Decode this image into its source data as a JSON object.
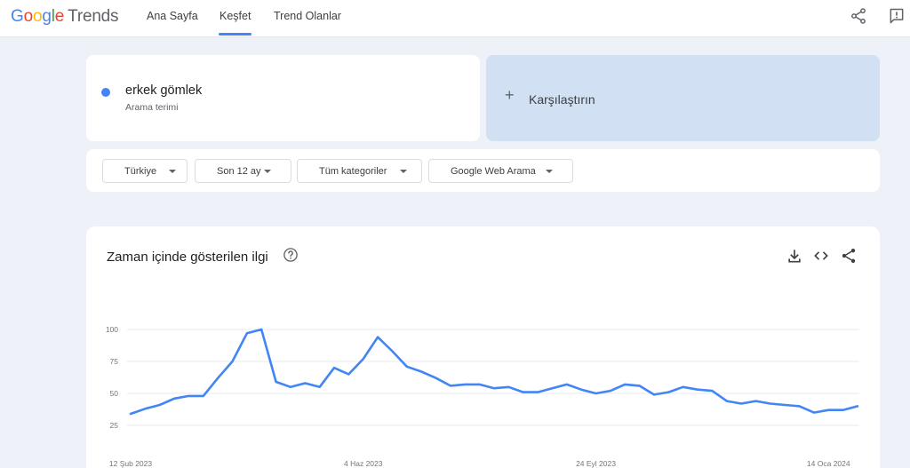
{
  "header": {
    "logo_google": "Google",
    "logo_trends": "Trends",
    "nav": [
      {
        "label": "Ana Sayfa"
      },
      {
        "label": "Keşfet"
      },
      {
        "label": "Trend Olanlar"
      }
    ],
    "icons": [
      "share-icon",
      "feedback-icon"
    ]
  },
  "search": {
    "term": "erkek gömlek",
    "term_type": "Arama terimi",
    "term_color": "#4285f4",
    "compare_plus": "+",
    "compare_label": "Karşılaştırın"
  },
  "filters": [
    {
      "label": "Türkiye"
    },
    {
      "label": "Son 12 ay"
    },
    {
      "label": "Tüm kategoriler"
    },
    {
      "label": "Google Web Arama"
    }
  ],
  "chart_section": {
    "title": "Zaman içinde gösterilen ilgi",
    "icons": [
      "help-icon",
      "download-icon",
      "embed-icon",
      "share-icon"
    ]
  },
  "chart_data": {
    "type": "line",
    "title": "",
    "xlabel": "",
    "ylabel": "",
    "ylim": [
      0,
      100
    ],
    "y_ticks": [
      25,
      50,
      75,
      100
    ],
    "grid": true,
    "x_tick_labels": [
      "12 Şub 2023",
      "4 Haz 2023",
      "24 Eyl 2023",
      "14 Oca 2024"
    ],
    "x_tick_indices": [
      0,
      16,
      32,
      48
    ],
    "series": [
      {
        "color": "#4285f4",
        "values": [
          34,
          38,
          41,
          46,
          48,
          48,
          62,
          75,
          97,
          100,
          59,
          55,
          58,
          55,
          70,
          65,
          77,
          94,
          83,
          71,
          67,
          62,
          56,
          57,
          57,
          54,
          55,
          51,
          51,
          54,
          57,
          53,
          50,
          52,
          57,
          56,
          49,
          51,
          55,
          53,
          52,
          44,
          42,
          44,
          42,
          41,
          40,
          35,
          37,
          37,
          40
        ]
      }
    ]
  }
}
